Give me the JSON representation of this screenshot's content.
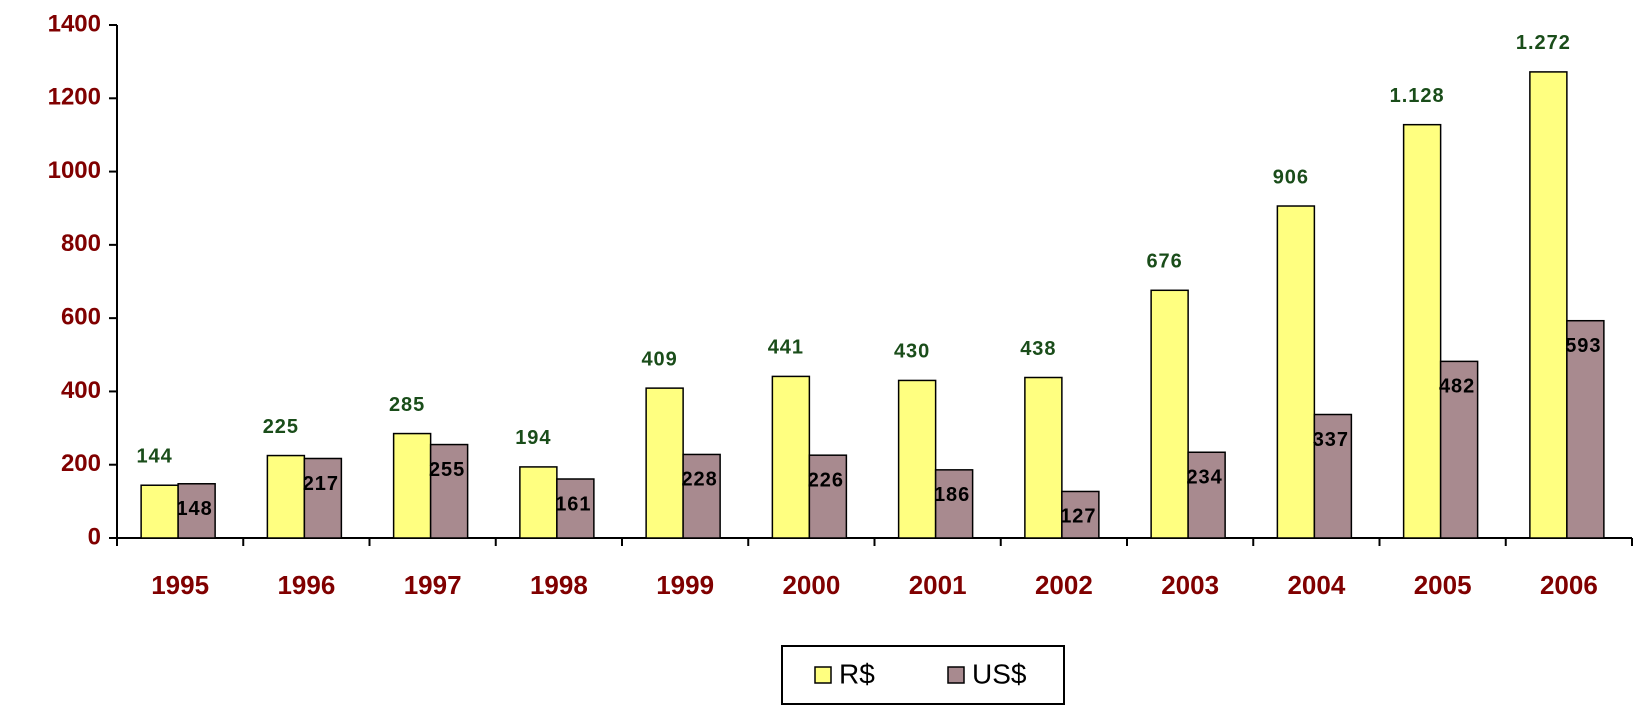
{
  "chart_data": {
    "type": "bar",
    "categories": [
      "1995",
      "1996",
      "1997",
      "1998",
      "1999",
      "2000",
      "2001",
      "2002",
      "2003",
      "2004",
      "2005",
      "2006"
    ],
    "series": [
      {
        "name": "R$",
        "color": "#ffff80",
        "values": [
          144,
          225,
          285,
          194,
          409,
          441,
          430,
          438,
          676,
          906,
          1128,
          1272
        ],
        "value_labels": [
          "144",
          "225",
          "285",
          "194",
          "409",
          "441",
          "430",
          "438",
          "676",
          "906",
          "1.128",
          "1.272"
        ]
      },
      {
        "name": "US$",
        "color": "#a88a8f",
        "values": [
          148,
          217,
          255,
          161,
          228,
          226,
          186,
          127,
          234,
          337,
          482,
          593
        ]
      }
    ],
    "ylim": [
      0,
      1400
    ],
    "yticks": [
      0,
      200,
      400,
      600,
      800,
      1000,
      1200,
      1400
    ],
    "grid": false
  }
}
